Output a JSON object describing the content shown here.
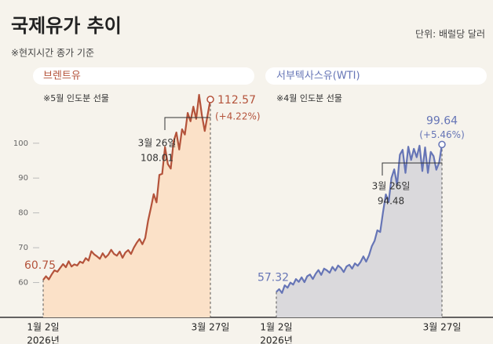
{
  "title": "국제유가 추이",
  "subtitle": "※현지시간 종가 기준",
  "unit": "단위: 배럴당 달러",
  "chart_data": [
    {
      "type": "line",
      "note": "※5월 인도분 선물",
      "year": "2026년",
      "change_label": "(+4.22%)",
      "categories": [
        "1월 2일",
        null,
        null,
        null,
        null,
        null,
        null,
        null,
        null,
        null,
        null,
        null,
        null,
        null,
        null,
        null,
        null,
        null,
        null,
        null,
        null,
        null,
        null,
        null,
        null,
        null,
        null,
        null,
        null,
        null,
        null,
        null,
        null,
        null,
        null,
        null,
        null,
        null,
        null,
        null,
        null,
        null,
        null,
        null,
        null,
        null,
        null,
        null,
        null,
        null,
        null,
        null,
        null,
        null,
        null,
        null,
        null,
        null,
        "3월 26일",
        "3월 27일"
      ],
      "series": [
        {
          "name": "브렌트유",
          "color": "#b4533b",
          "fill": "#fbe1c8",
          "values": [
            60.75,
            61.8,
            60.9,
            62.3,
            63.5,
            63.1,
            64.2,
            65.3,
            64.4,
            66.1,
            64.6,
            65.2,
            64.9,
            66.0,
            65.6,
            67.0,
            66.3,
            69.0,
            68.1,
            67.5,
            66.8,
            68.4,
            67.2,
            68.0,
            69.4,
            68.2,
            67.7,
            68.9,
            67.1,
            68.6,
            69.3,
            68.2,
            70.0,
            71.4,
            72.5,
            71.0,
            72.8,
            77.7,
            81.4,
            85.4,
            83.0,
            90.9,
            91.2,
            98.9,
            94.0,
            92.7,
            100.5,
            103.1,
            98.2,
            104.0,
            102.5,
            108.7,
            106.3,
            110.5,
            107.0,
            113.9,
            108.0,
            103.5,
            108.01,
            112.57
          ]
        }
      ],
      "ylim": [
        50,
        122
      ],
      "yticks": [
        60,
        70,
        80,
        90,
        100
      ]
    },
    {
      "type": "line",
      "note": "※4월 인도분 선물",
      "year": "2026년",
      "change_label": "(+5.46%)",
      "categories": [
        "1월 2일",
        null,
        null,
        null,
        null,
        null,
        null,
        null,
        null,
        null,
        null,
        null,
        null,
        null,
        null,
        null,
        null,
        null,
        null,
        null,
        null,
        null,
        null,
        null,
        null,
        null,
        null,
        null,
        null,
        null,
        null,
        null,
        null,
        null,
        null,
        null,
        null,
        null,
        null,
        null,
        null,
        null,
        null,
        null,
        null,
        null,
        null,
        null,
        null,
        null,
        null,
        null,
        null,
        null,
        null,
        null,
        null,
        null,
        "3월 26일",
        "3월 27일"
      ],
      "series": [
        {
          "name": "서부텍사스유(WTI)",
          "color": "#6675b6",
          "fill": "#dad9dc",
          "values": [
            57.32,
            58.1,
            57.0,
            59.2,
            58.5,
            60.0,
            59.4,
            61.0,
            60.2,
            61.5,
            60.1,
            61.8,
            62.3,
            61.0,
            62.5,
            63.6,
            62.2,
            64.0,
            63.5,
            62.8,
            64.5,
            63.4,
            64.9,
            64.2,
            63.0,
            64.6,
            65.1,
            64.0,
            65.5,
            64.8,
            65.9,
            67.5,
            66.0,
            67.8,
            70.4,
            72.0,
            75.0,
            74.5,
            80.2,
            85.3,
            83.1,
            90.0,
            92.5,
            88.0,
            96.7,
            98.1,
            91.5,
            99.0,
            95.2,
            98.4,
            96.0,
            99.3,
            92.0,
            98.8,
            91.5,
            97.5,
            96.3,
            92.4,
            94.48,
            99.64
          ]
        }
      ],
      "ylim": [
        50,
        122
      ],
      "yticks": []
    }
  ]
}
